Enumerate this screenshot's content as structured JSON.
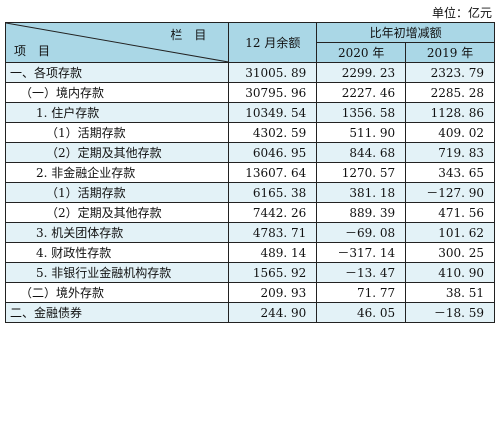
{
  "unit_label": "单位：亿元",
  "header": {
    "column_label": "栏　目",
    "item_label": "项　目",
    "amount_label": "12 月余额",
    "change_label": "比年初增减额",
    "year_2020": "2020 年",
    "year_2019": "2019 年"
  },
  "rows": [
    {
      "name": "一、各项存款",
      "amount": "31005. 89",
      "y2020": "2299. 23",
      "y2019": "2323. 79"
    },
    {
      "name": "（一）境内存款",
      "amount": "30795. 96",
      "y2020": "2227. 46",
      "y2019": "2285. 28"
    },
    {
      "name": "1. 住户存款",
      "amount": "10349. 54",
      "y2020": "1356. 58",
      "y2019": "1128. 86"
    },
    {
      "name": "（1）活期存款",
      "amount": "4302. 59",
      "y2020": "511. 90",
      "y2019": "409. 02"
    },
    {
      "name": "（2）定期及其他存款",
      "amount": "6046. 95",
      "y2020": "844. 68",
      "y2019": "719. 83"
    },
    {
      "name": "2. 非金融企业存款",
      "amount": "13607. 64",
      "y2020": "1270. 57",
      "y2019": "343. 65"
    },
    {
      "name": "（1）活期存款",
      "amount": "6165. 38",
      "y2020": "381. 18",
      "y2019": "－127. 90"
    },
    {
      "name": "（2）定期及其他存款",
      "amount": "7442. 26",
      "y2020": "889. 39",
      "y2019": "471. 56"
    },
    {
      "name": "3. 机关团体存款",
      "amount": "4783. 71",
      "y2020": "－69. 08",
      "y2019": "101. 62"
    },
    {
      "name": "4. 财政性存款",
      "amount": "489. 14",
      "y2020": "－317. 14",
      "y2019": "300. 25"
    },
    {
      "name": "5. 非银行业金融机构存款",
      "amount": "1565. 92",
      "y2020": "－13. 47",
      "y2019": "410. 90"
    },
    {
      "name": "（二）境外存款",
      "amount": "209. 93",
      "y2020": "71. 77",
      "y2019": "38. 51"
    },
    {
      "name": "二、金融债券",
      "amount": "244. 90",
      "y2020": "46. 05",
      "y2019": "－18. 59"
    }
  ]
}
